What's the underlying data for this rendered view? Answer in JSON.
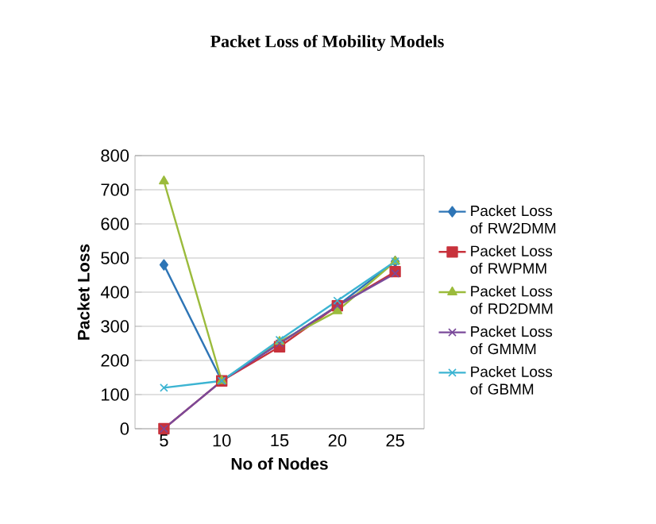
{
  "chart_data": {
    "type": "line",
    "title": "Packet Loss of Mobility Models",
    "xlabel": "No of Nodes",
    "ylabel": "Packet Loss",
    "categories": [
      "5",
      "10",
      "15",
      "20",
      "25"
    ],
    "series": [
      {
        "name": "Packet Loss of RW2DMM",
        "color": "#2e75b6",
        "marker": "diamond",
        "values": [
          480,
          140,
          250,
          360,
          490
        ]
      },
      {
        "name": "Packet Loss of RWPMM",
        "color": "#c8323c",
        "marker": "square",
        "values": [
          0,
          140,
          240,
          360,
          460
        ]
      },
      {
        "name": "Packet Loss of RD2DMM",
        "color": "#9bbb3c",
        "marker": "triangle",
        "values": [
          725,
          140,
          255,
          345,
          490
        ]
      },
      {
        "name": "Packet Loss of GMMM",
        "color": "#7a4a9a",
        "marker": "cross",
        "values": [
          0,
          140,
          250,
          360,
          455
        ]
      },
      {
        "name": "Packet Loss of GBMM",
        "color": "#3cb4d2",
        "marker": "cross",
        "values": [
          120,
          140,
          260,
          375,
          490
        ]
      }
    ],
    "ylim": [
      0,
      800
    ],
    "yticks": [
      0,
      100,
      200,
      300,
      400,
      500,
      600,
      700,
      800
    ],
    "grid": "y",
    "legend": "right",
    "line_style": "solid"
  }
}
